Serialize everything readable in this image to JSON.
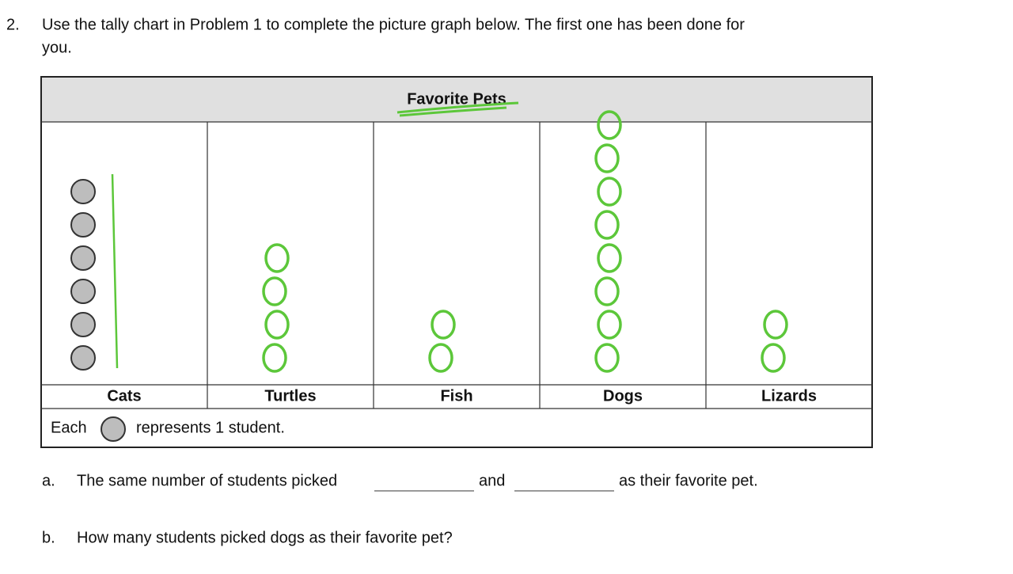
{
  "problem": {
    "number": "2.",
    "instruction": "Use the tally chart in Problem 1 to complete the picture graph below.  The first one has been done for",
    "instruction_cont": "you."
  },
  "graph": {
    "title": "Favorite Pets",
    "categories": [
      "Cats",
      "Turtles",
      "Fish",
      "Dogs",
      "Lizards"
    ],
    "counts": [
      6,
      4,
      2,
      8,
      2
    ],
    "key": {
      "before": "Each",
      "after": "represents 1 student."
    }
  },
  "questions": [
    {
      "letter": "a.",
      "part1": "The same number of students picked",
      "part2": "and",
      "part3": "as their favorite pet."
    },
    {
      "letter": "b.",
      "text": "How many students picked dogs as their favorite pet?"
    }
  ]
}
